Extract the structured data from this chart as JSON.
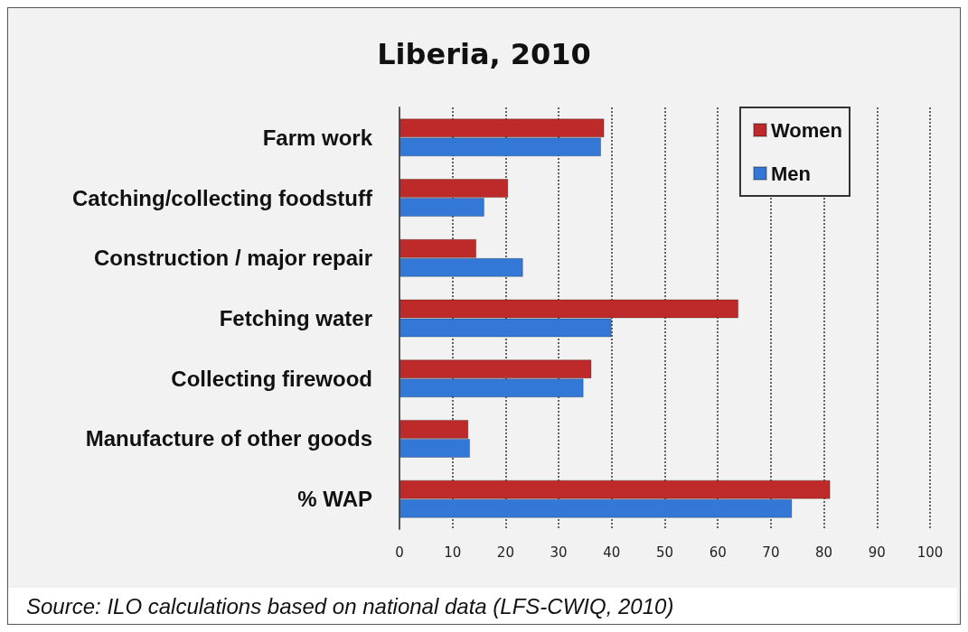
{
  "chart_data": {
    "type": "bar",
    "orientation": "horizontal",
    "title": "Liberia, 2010",
    "categories": [
      "Farm work",
      "Catching/collecting foodstuff",
      "Construction / major repair",
      "Fetching water",
      "Collecting firewood",
      "Manufacture of other goods",
      "% WAP"
    ],
    "series": [
      {
        "name": "Women",
        "color": "#be2a2a",
        "values": [
          38.6,
          20.5,
          14.5,
          63.9,
          36.2,
          13.0,
          81.2
        ]
      },
      {
        "name": "Men",
        "color": "#3378d6",
        "values": [
          38.0,
          16.0,
          23.3,
          40.0,
          34.7,
          13.3,
          74.0
        ]
      }
    ],
    "xlim": [
      0,
      100
    ],
    "xticks": [
      0,
      10,
      20,
      30,
      40,
      50,
      60,
      70,
      80,
      90,
      100
    ],
    "grid": "x",
    "legend": "top right",
    "annotations": [
      "Source: ILO calculations based on national data (LFS-CWIQ, 2010)"
    ]
  }
}
